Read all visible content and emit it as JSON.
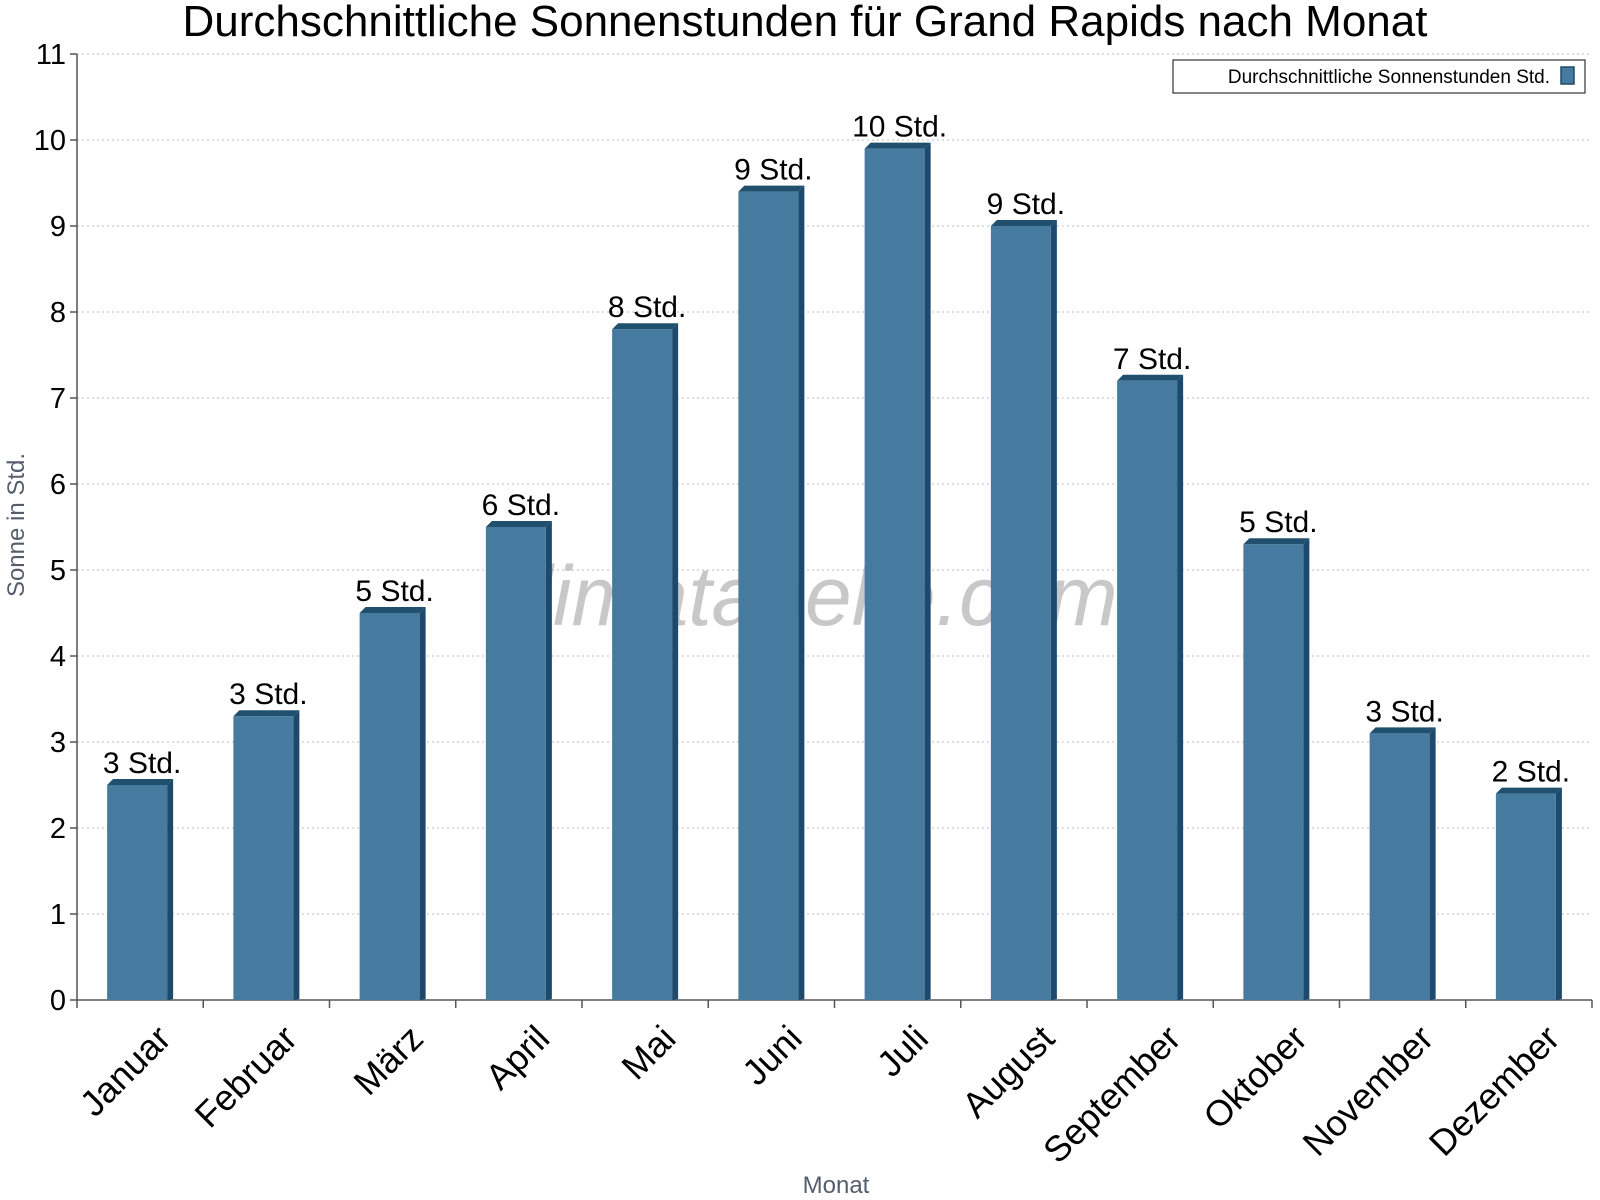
{
  "chart_data": {
    "type": "bar",
    "title": "Durchschnittliche Sonnenstunden für Grand Rapids nach Monat",
    "xlabel": "Monat",
    "ylabel": "Sonne in Std.",
    "ylim": [
      0,
      11
    ],
    "yticks": [
      0,
      1,
      2,
      3,
      4,
      5,
      6,
      7,
      8,
      9,
      10,
      11
    ],
    "grid": true,
    "legend_position": "top-right",
    "categories": [
      "Januar",
      "Februar",
      "März",
      "April",
      "Mai",
      "Juni",
      "Juli",
      "August",
      "September",
      "Oktober",
      "November",
      "Dezember"
    ],
    "series": [
      {
        "name": "Durchschnittliche Sonnenstunden Std.",
        "color": "#467a9e",
        "values": [
          2.5,
          3.3,
          4.5,
          5.5,
          7.8,
          9.4,
          9.9,
          9.0,
          7.2,
          5.3,
          3.1,
          2.4
        ],
        "data_labels": [
          "3 Std.",
          "3 Std.",
          "5 Std.",
          "6 Std.",
          "8 Std.",
          "9 Std.",
          "10 Std.",
          "9 Std.",
          "7 Std.",
          "5 Std.",
          "3 Std.",
          "2 Std."
        ]
      }
    ],
    "watermark": "klimatabelle.com"
  }
}
